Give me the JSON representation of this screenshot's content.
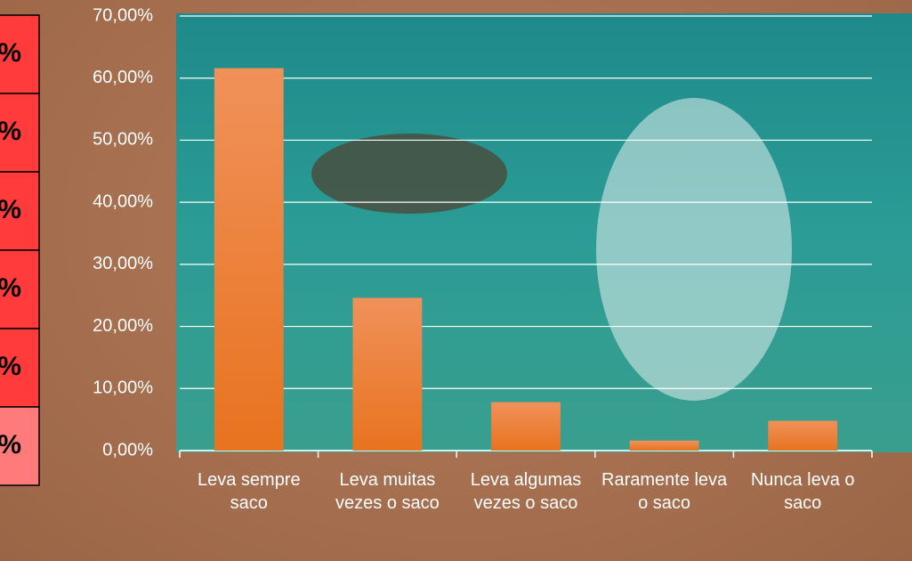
{
  "side_table": {
    "cells": [
      "%",
      "%",
      "%",
      "%",
      "%",
      "%"
    ]
  },
  "chart_data": {
    "type": "bar",
    "categories": [
      "Leva sempre saco",
      "Leva muitas vezes o saco",
      "Leva algumas vezes o saco",
      "Raramente leva o saco",
      "Nunca leva o saco"
    ],
    "values": [
      61.6,
      24.6,
      7.8,
      1.6,
      4.8
    ],
    "color": "#ed7d31",
    "ylim": [
      0,
      70
    ],
    "yticks": [
      {
        "value": 0,
        "label": "0,00%"
      },
      {
        "value": 10,
        "label": "10,00%"
      },
      {
        "value": 20,
        "label": "20,00%"
      },
      {
        "value": 30,
        "label": "30,00%"
      },
      {
        "value": 40,
        "label": "40,00%"
      },
      {
        "value": 50,
        "label": "50,00%"
      },
      {
        "value": 60,
        "label": "60,00%"
      },
      {
        "value": 70,
        "label": "70,00%"
      }
    ],
    "grid": true
  }
}
